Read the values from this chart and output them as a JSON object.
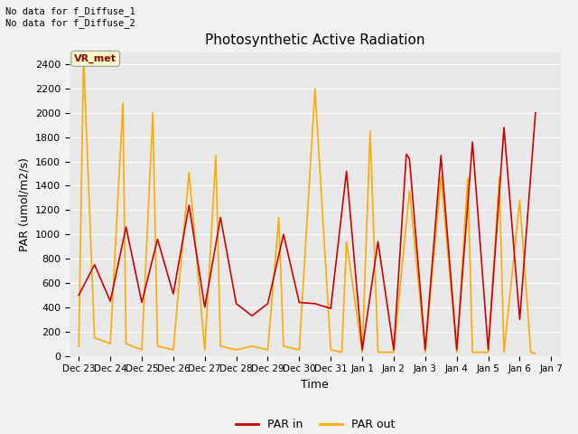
{
  "title": "Photosynthetic Active Radiation",
  "xlabel": "Time",
  "ylabel": "PAR (umol/m2/s)",
  "annotation_text": "No data for f_Diffuse_1\nNo data for f_Diffuse_2",
  "legend_label1": "PAR in",
  "legend_label2": "PAR out",
  "box_label": "VR_met",
  "color_par_in": "#cc0000",
  "color_par_out": "#ffaa00",
  "ylim": [
    0,
    2500
  ],
  "yticks": [
    0,
    200,
    400,
    600,
    800,
    1000,
    1200,
    1400,
    1600,
    1800,
    2000,
    2200,
    2400
  ],
  "x_labels": [
    "Dec 23",
    "Dec 24",
    "Dec 25",
    "Dec 26",
    "Dec 27",
    "Dec 28",
    "Dec 29",
    "Dec 30",
    "Dec 31",
    "Jan 1",
    "Jan 2",
    "Jan 3",
    "Jan 4",
    "Jan 5",
    "Jan 6",
    "Jan 7"
  ],
  "par_in_x": [
    0.0,
    0.5,
    1.0,
    1.5,
    2.0,
    2.5,
    3.0,
    3.5,
    4.0,
    4.5,
    5.0,
    5.5,
    6.0,
    6.5,
    7.0,
    7.5,
    8.0,
    8.5,
    9.0,
    9.5,
    10.0,
    10.4,
    10.5,
    11.0,
    11.5,
    12.0,
    12.5,
    13.0,
    13.5,
    14.0,
    14.5
  ],
  "par_in_y": [
    500,
    750,
    450,
    1060,
    440,
    960,
    510,
    1240,
    400,
    1140,
    430,
    330,
    430,
    1000,
    440,
    430,
    390,
    1520,
    50,
    940,
    50,
    1660,
    1620,
    50,
    1650,
    50,
    1760,
    50,
    1880,
    300,
    2000
  ],
  "par_out_x": [
    0.0,
    0.15,
    0.5,
    1.0,
    1.4,
    1.5,
    2.0,
    2.35,
    2.5,
    3.0,
    3.5,
    4.0,
    4.35,
    4.5,
    5.0,
    5.5,
    6.0,
    6.35,
    6.5,
    7.0,
    7.5,
    8.0,
    8.35,
    8.5,
    9.0,
    9.25,
    9.5,
    10.0,
    10.5,
    11.0,
    11.5,
    12.0,
    12.35,
    12.5,
    13.0,
    13.35,
    13.5,
    14.0,
    14.35,
    14.5
  ],
  "par_out_y": [
    80,
    2460,
    150,
    100,
    2080,
    100,
    50,
    2000,
    80,
    50,
    1510,
    50,
    1650,
    80,
    50,
    80,
    50,
    1140,
    80,
    50,
    2200,
    50,
    30,
    940,
    30,
    1850,
    30,
    30,
    1360,
    30,
    1470,
    30,
    1460,
    30,
    30,
    1470,
    30,
    1280,
    30,
    20
  ]
}
